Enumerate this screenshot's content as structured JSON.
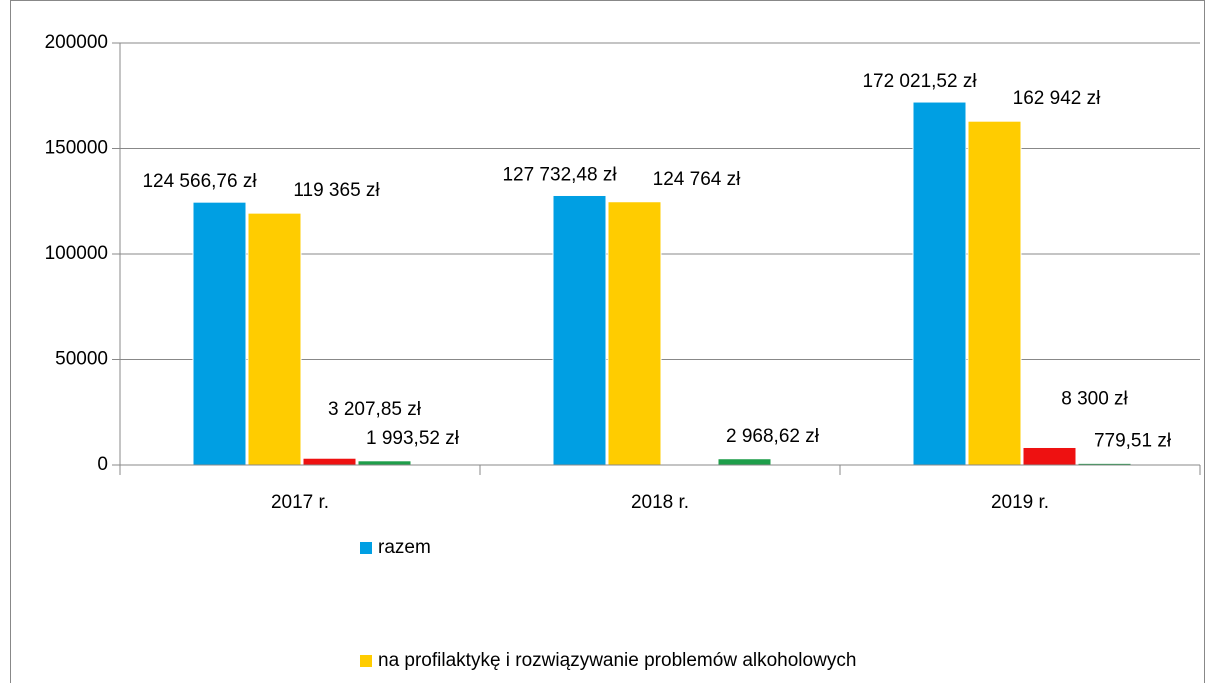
{
  "chart_data": {
    "type": "bar",
    "categories": [
      "2017 r.",
      "2018 r.",
      "2019 r."
    ],
    "series": [
      {
        "name": "razem",
        "color": "#009fe3",
        "values": [
          124566.76,
          127732.48,
          172021.52
        ],
        "value_labels": [
          "124 566,76 zł",
          "127 732,48 zł",
          "172 021,52 zł"
        ]
      },
      {
        "name": "na profilaktykę i rozwiązywanie problemów alkoholowych",
        "color": "#ffcc00",
        "values": [
          119365,
          124764,
          162942
        ],
        "value_labels": [
          "119 365 zł",
          "124 764 zł",
          "162 942 zł"
        ]
      },
      {
        "color": "#ee1111",
        "values": [
          3207.85,
          null,
          8300
        ],
        "value_labels": [
          "3 207,85 zł",
          null,
          "8 300 zł"
        ]
      },
      {
        "color": "#1e9e4a",
        "values": [
          1993.52,
          2968.62,
          779.51
        ],
        "value_labels": [
          "1 993,52 zł",
          "2 968,62 zł",
          "779,51 zł"
        ]
      }
    ],
    "ylim": [
      0,
      200000
    ],
    "yticks": [
      0,
      50000,
      100000,
      150000,
      200000
    ],
    "grid": true
  }
}
